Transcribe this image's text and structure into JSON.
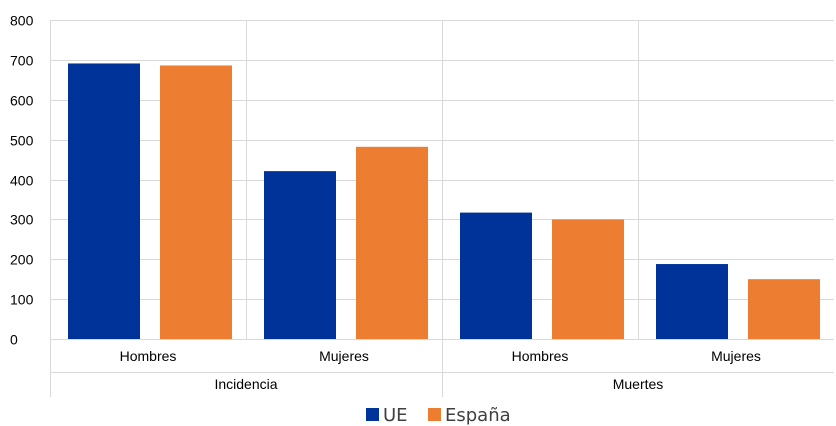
{
  "chart_data": {
    "type": "bar",
    "ylim": [
      0,
      800
    ],
    "yticks": [
      0,
      100,
      200,
      300,
      400,
      500,
      600,
      700,
      800
    ],
    "grid": true,
    "legend_position": "bottom",
    "groups": [
      {
        "label": "Incidencia",
        "categories": [
          "Hombres",
          "Mujeres"
        ]
      },
      {
        "label": "Muertes",
        "categories": [
          "Hombres",
          "Mujeres"
        ]
      }
    ],
    "categories": [
      "Hombres",
      "Mujeres",
      "Hombres",
      "Mujeres"
    ],
    "series": [
      {
        "name": "UE",
        "color": "#003399",
        "values": [
          691,
          421,
          317,
          188
        ]
      },
      {
        "name": "España",
        "color": "#ED7D31",
        "values": [
          686,
          482,
          300,
          150
        ]
      }
    ]
  }
}
